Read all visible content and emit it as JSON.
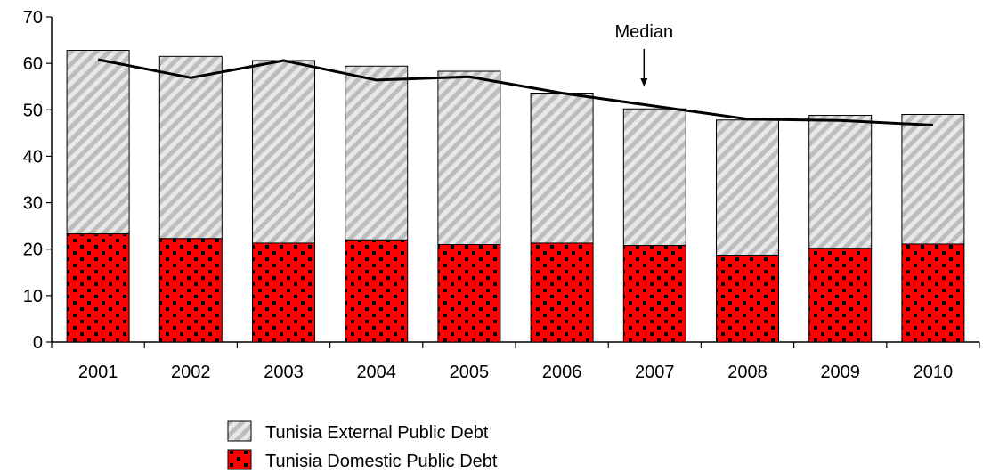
{
  "chart_data": {
    "type": "bar",
    "stacked": true,
    "categories": [
      "2001",
      "2002",
      "2003",
      "2004",
      "2005",
      "2006",
      "2007",
      "2008",
      "2009",
      "2010"
    ],
    "series": [
      {
        "name": "Tunisia Domestic Public Debt",
        "kind": "bar",
        "color": "#ff0000",
        "pattern": "black dots",
        "values": [
          23.3,
          22.3,
          21.3,
          22.0,
          21.0,
          21.3,
          20.8,
          18.7,
          20.2,
          21.1
        ]
      },
      {
        "name": "Tunisia External Public Debt",
        "kind": "bar",
        "color": "#c8c8c8",
        "pattern": "diagonal stripes",
        "values": [
          39.5,
          39.2,
          39.3,
          37.4,
          37.3,
          32.3,
          29.4,
          29.1,
          28.6,
          27.9
        ]
      },
      {
        "name": "",
        "kind": "line",
        "color": "#000000",
        "values": [
          60.8,
          56.9,
          60.6,
          56.4,
          57.1,
          53.6,
          50.8,
          48.0,
          47.7,
          46.7
        ]
      }
    ],
    "yticks": [
      "0",
      "10",
      "20",
      "30",
      "40",
      "50",
      "60",
      "70"
    ],
    "ylim": [
      0,
      70
    ],
    "annotation": {
      "text": "Median",
      "category": "2007"
    },
    "legend": {
      "position": "bottom",
      "items": [
        "Tunisia External Public Debt",
        "Tunisia Domestic Public Debt"
      ]
    },
    "grid": false,
    "title": "",
    "xlabel": "",
    "ylabel": ""
  }
}
